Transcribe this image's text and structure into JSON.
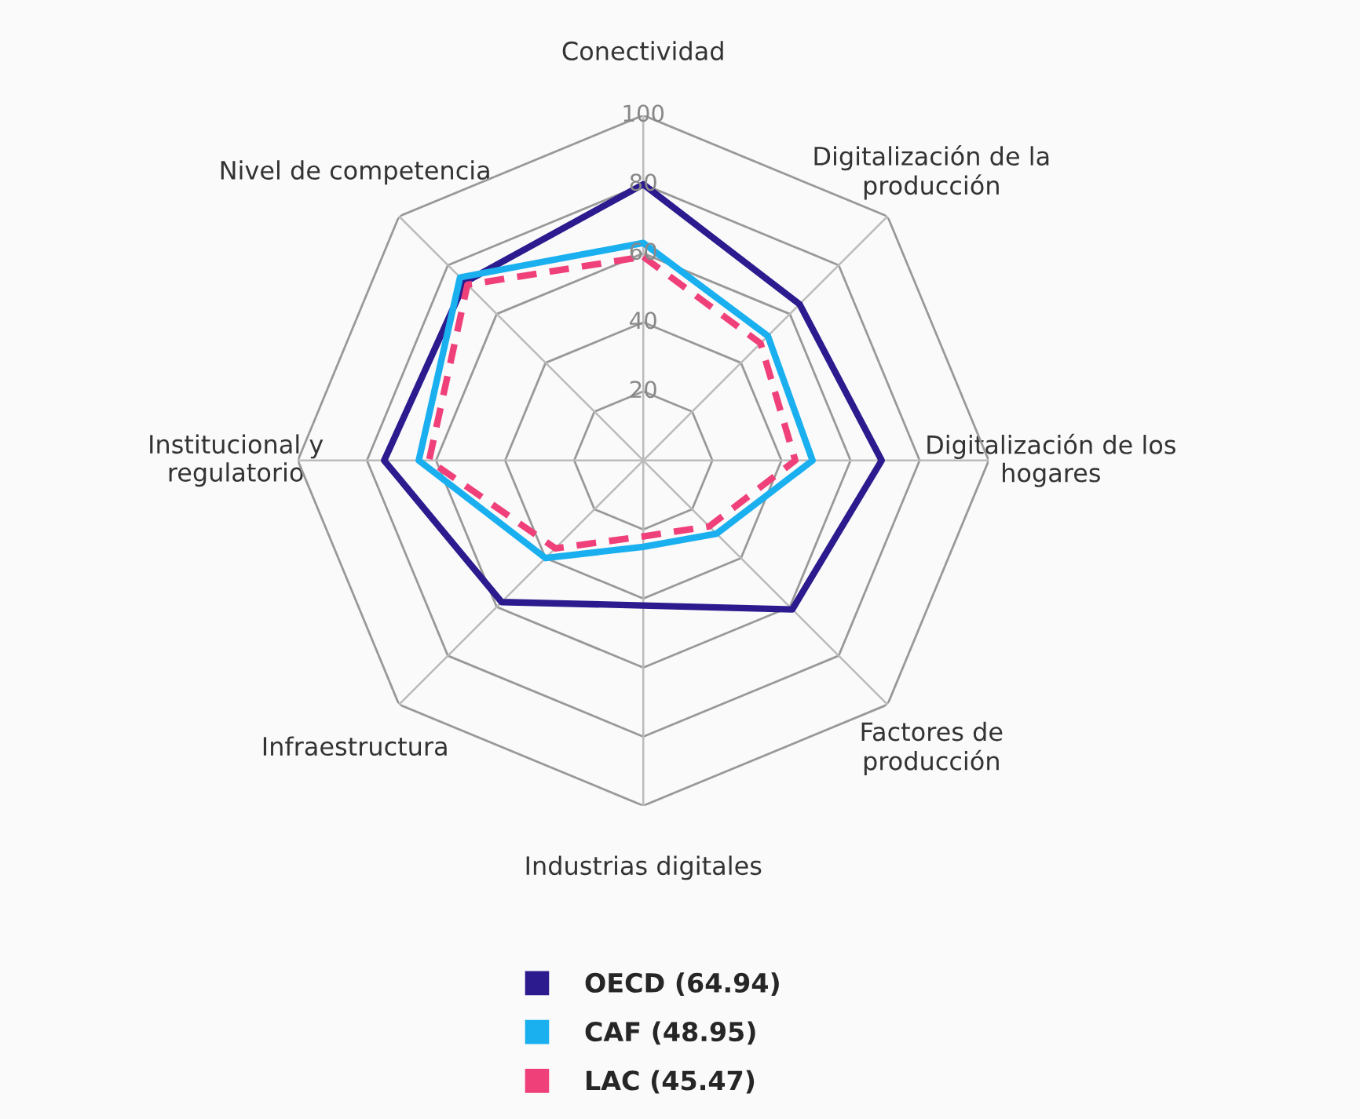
{
  "chart_data": {
    "type": "radar",
    "categories": [
      "Conectividad",
      "Digitalización de la\nproducción",
      "Digitalización de los\nhogares",
      "Factores de\nproducción",
      "Industrias digitales",
      "Infraestructura",
      "Institucional y\nregulatorio",
      "Nivel de competencia"
    ],
    "series": [
      {
        "name": "OECD (64.94)",
        "color": "#2b1b8e",
        "values": [
          80,
          64,
          69,
          61,
          42,
          58,
          75,
          73
        ],
        "line_style": "solid"
      },
      {
        "name": "CAF (48.95)",
        "color": "#1ab0f0",
        "values": [
          63,
          51,
          49,
          30,
          25,
          40,
          65,
          75
        ],
        "line_style": "solid"
      },
      {
        "name": "LAC (45.47)",
        "color": "#f0407a",
        "values": [
          59,
          48,
          44,
          27,
          22,
          36,
          62,
          72
        ],
        "line_style": "dashed"
      }
    ],
    "ylim": [
      0,
      100
    ],
    "yticks": [
      20,
      40,
      60,
      80,
      100
    ],
    "grid": true,
    "legend": "bottom",
    "marker": "none"
  }
}
